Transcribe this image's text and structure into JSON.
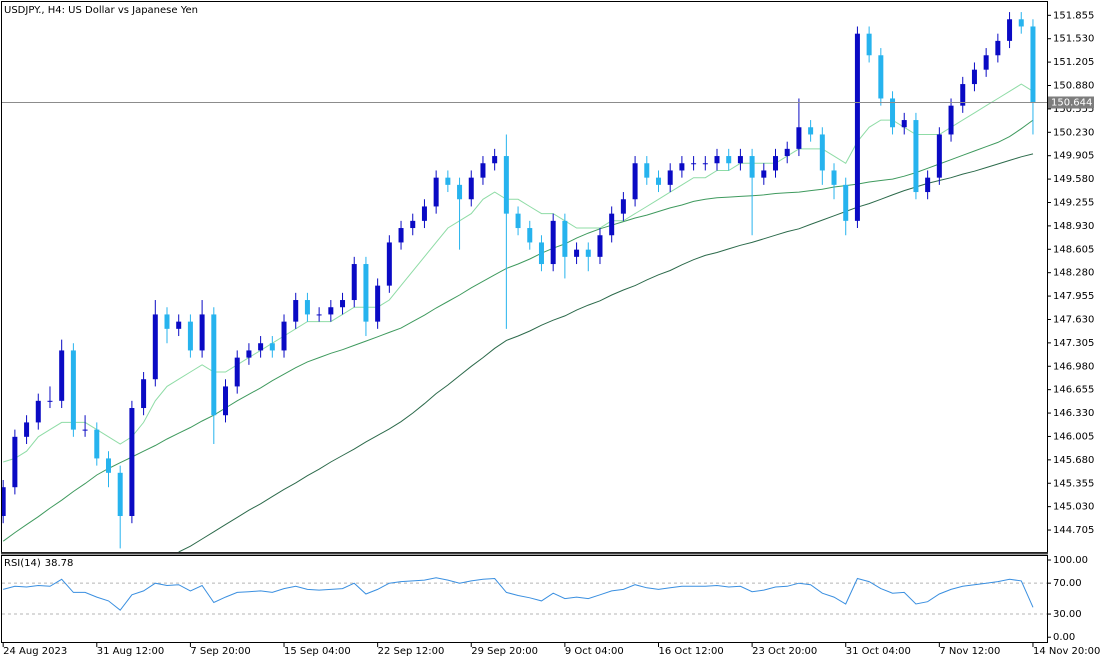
{
  "chart_data": [
    {
      "type": "candlestick",
      "title": "USDJPY., H4: US Dollar vs Japanese Yen",
      "xlim": [
        -0.1,
        89.2
      ],
      "ylim": [
        144.4,
        152.04
      ],
      "yticks": [
        151.855,
        {
          "value": 151.53,
          "label": "151.530"
        },
        151.205,
        {
          "value": 150.88,
          "label": "150.880"
        },
        150.555,
        {
          "value": 150.23,
          "label": "150.230"
        },
        149.905,
        {
          "value": 149.58,
          "label": "149.580"
        },
        149.255,
        {
          "value": 148.93,
          "label": "148.930"
        },
        148.605,
        {
          "value": 148.28,
          "label": "148.280"
        },
        147.955,
        {
          "value": 147.63,
          "label": "147.630"
        },
        147.305,
        {
          "value": 146.98,
          "label": "146.980"
        },
        146.655,
        {
          "value": 146.33,
          "label": "146.330"
        },
        146.005,
        {
          "value": 145.68,
          "label": "145.680"
        },
        145.355,
        {
          "value": 145.03,
          "label": "145.030"
        },
        144.705
      ],
      "xticks": [
        {
          "value": 0,
          "label": "24 Aug 2023"
        },
        {
          "value": 8,
          "label": "31 Aug 12:00"
        },
        {
          "value": 16,
          "label": "7 Sep 20:00"
        },
        {
          "value": 24,
          "label": "15 Sep 04:00"
        },
        {
          "value": 32,
          "label": "22 Sep 12:00"
        },
        {
          "value": 40,
          "label": "29 Sep 20:00"
        },
        {
          "value": 48,
          "label": "9 Oct 04:00"
        },
        {
          "value": 56,
          "label": "16 Oct 12:00"
        },
        {
          "value": 64,
          "label": "23 Oct 20:00"
        },
        {
          "value": 72,
          "label": "31 Oct 04:00"
        },
        {
          "value": 80,
          "label": "7 Nov 12:00"
        },
        {
          "value": 88,
          "label": "14 Nov 20:00"
        }
      ],
      "up_color": "#0a0ac4",
      "down_color": "#26b3ee",
      "candles": {
        "open": [
          144.9,
          145.3,
          146.0,
          146.2,
          146.5,
          146.5,
          147.2,
          146.1,
          146.1,
          145.7,
          145.5,
          144.9,
          146.4,
          146.8,
          147.7,
          147.5,
          147.6,
          147.2,
          147.7,
          146.3,
          146.7,
          147.1,
          147.2,
          147.3,
          147.2,
          147.6,
          147.9,
          147.7,
          147.7,
          147.8,
          147.9,
          148.4,
          147.6,
          148.1,
          148.7,
          148.9,
          149.0,
          149.2,
          149.6,
          149.5,
          149.3,
          149.6,
          149.8,
          149.9,
          149.1,
          148.9,
          148.7,
          148.4,
          149.0,
          148.5,
          148.6,
          148.5,
          148.8,
          149.1,
          149.3,
          149.8,
          149.6,
          149.5,
          149.7,
          149.8,
          149.8,
          149.8,
          149.9,
          149.8,
          149.9,
          149.6,
          149.7,
          149.9,
          150.0,
          150.3,
          150.2,
          149.7,
          149.5,
          149.0,
          151.6,
          151.3,
          150.7,
          150.3,
          150.4,
          149.4,
          149.6,
          150.2,
          150.6,
          150.9,
          151.1,
          151.3,
          151.5,
          151.8,
          151.7
        ],
        "high": [
          145.4,
          146.1,
          146.3,
          146.6,
          146.7,
          147.35,
          147.3,
          146.3,
          146.2,
          145.8,
          145.6,
          146.5,
          146.9,
          147.9,
          147.8,
          147.7,
          147.7,
          147.9,
          147.8,
          146.8,
          147.2,
          147.3,
          147.4,
          147.4,
          147.7,
          148.0,
          148.0,
          147.8,
          147.9,
          148.0,
          148.5,
          148.5,
          148.2,
          148.8,
          149.0,
          149.1,
          149.3,
          149.7,
          149.7,
          149.6,
          149.7,
          149.9,
          150.0,
          150.2,
          149.2,
          149.0,
          148.8,
          149.1,
          149.1,
          148.7,
          148.7,
          148.9,
          149.2,
          149.4,
          149.9,
          149.9,
          149.7,
          149.8,
          149.9,
          149.9,
          149.9,
          150.0,
          150.0,
          150.0,
          150.0,
          149.8,
          150.0,
          150.1,
          150.7,
          150.4,
          150.3,
          149.8,
          149.6,
          151.7,
          151.7,
          151.4,
          150.8,
          150.5,
          150.5,
          149.7,
          150.3,
          150.7,
          151.0,
          151.2,
          151.4,
          151.6,
          151.9,
          151.9,
          151.8
        ],
        "low": [
          144.8,
          145.2,
          145.9,
          146.1,
          146.4,
          146.4,
          146.0,
          146.0,
          145.6,
          145.3,
          144.45,
          144.8,
          146.3,
          146.7,
          147.3,
          147.4,
          147.1,
          147.1,
          145.9,
          146.2,
          146.6,
          147.0,
          147.1,
          147.1,
          147.1,
          147.5,
          147.6,
          147.6,
          147.6,
          147.7,
          147.8,
          147.4,
          147.5,
          148.0,
          148.6,
          148.8,
          148.9,
          149.1,
          149.4,
          148.6,
          149.2,
          149.5,
          149.7,
          147.5,
          148.8,
          148.6,
          148.3,
          148.3,
          148.2,
          148.4,
          148.3,
          148.4,
          148.7,
          149.0,
          149.2,
          149.5,
          149.4,
          149.4,
          149.6,
          149.7,
          149.7,
          149.7,
          149.7,
          149.7,
          148.8,
          149.5,
          149.6,
          149.8,
          149.9,
          150.1,
          149.5,
          149.3,
          148.8,
          148.9,
          151.2,
          150.6,
          150.2,
          150.2,
          149.3,
          149.3,
          149.5,
          150.1,
          150.5,
          150.8,
          151.0,
          151.2,
          151.4,
          151.6,
          150.2
        ],
        "close": [
          145.3,
          146.0,
          146.2,
          146.5,
          146.5,
          147.2,
          146.1,
          146.1,
          145.7,
          145.5,
          144.9,
          146.4,
          146.8,
          147.7,
          147.5,
          147.6,
          147.2,
          147.7,
          146.3,
          146.7,
          147.1,
          147.2,
          147.3,
          147.2,
          147.6,
          147.9,
          147.7,
          147.7,
          147.8,
          147.9,
          148.4,
          147.6,
          148.1,
          148.7,
          148.9,
          149.0,
          149.2,
          149.6,
          149.5,
          149.3,
          149.6,
          149.8,
          149.9,
          149.1,
          148.9,
          148.7,
          148.4,
          149.0,
          148.5,
          148.6,
          148.5,
          148.8,
          149.1,
          149.3,
          149.8,
          149.6,
          149.5,
          149.7,
          149.8,
          149.8,
          149.8,
          149.9,
          149.8,
          149.9,
          149.6,
          149.7,
          149.9,
          150.0,
          150.3,
          150.2,
          149.7,
          149.5,
          149.0,
          151.6,
          151.3,
          150.7,
          150.3,
          150.4,
          149.4,
          149.6,
          150.2,
          150.6,
          150.9,
          151.1,
          151.3,
          151.5,
          151.8,
          151.7,
          150.644
        ]
      },
      "series": [
        {
          "color": "#8fdca6",
          "values": [
            145.65,
            145.7,
            145.8,
            146.0,
            146.1,
            146.2,
            146.2,
            146.2,
            146.1,
            146.0,
            145.9,
            146.0,
            146.2,
            146.5,
            146.7,
            146.8,
            146.9,
            147.0,
            146.9,
            146.9,
            147.0,
            147.1,
            147.2,
            147.3,
            147.4,
            147.5,
            147.6,
            147.6,
            147.6,
            147.7,
            147.8,
            147.8,
            147.8,
            147.9,
            148.1,
            148.3,
            148.5,
            148.7,
            148.9,
            149.0,
            149.1,
            149.3,
            149.4,
            149.3,
            149.3,
            149.2,
            149.1,
            149.1,
            149.0,
            148.9,
            148.9,
            148.9,
            149.0,
            149.0,
            149.1,
            149.2,
            149.3,
            149.4,
            149.5,
            149.6,
            149.6,
            149.7,
            149.7,
            149.8,
            149.8,
            149.8,
            149.8,
            149.9,
            150.0,
            150.0,
            150.0,
            149.9,
            149.8,
            150.1,
            150.3,
            150.4,
            150.4,
            150.3,
            150.2,
            150.2,
            150.2,
            150.3,
            150.4,
            150.5,
            150.6,
            150.7,
            150.8,
            150.9,
            150.8
          ]
        },
        {
          "color": "#3f9a5e",
          "values": [
            144.55,
            144.67,
            144.78,
            144.89,
            145.01,
            145.12,
            145.24,
            145.35,
            145.47,
            145.56,
            145.64,
            145.72,
            145.8,
            145.88,
            145.97,
            146.05,
            146.13,
            146.22,
            146.3,
            146.4,
            146.5,
            146.59,
            146.68,
            146.78,
            146.87,
            146.96,
            147.04,
            147.1,
            147.16,
            147.21,
            147.27,
            147.33,
            147.39,
            147.45,
            147.51,
            147.6,
            147.69,
            147.79,
            147.88,
            147.97,
            148.07,
            148.16,
            148.25,
            148.34,
            148.4,
            148.47,
            148.55,
            148.62,
            148.68,
            148.76,
            148.83,
            148.89,
            148.94,
            148.99,
            149.04,
            149.08,
            149.13,
            149.18,
            149.22,
            149.27,
            149.3,
            149.32,
            149.33,
            149.34,
            149.35,
            149.36,
            149.38,
            149.39,
            149.4,
            149.42,
            149.44,
            149.47,
            149.49,
            149.51,
            149.54,
            149.56,
            149.58,
            149.62,
            149.67,
            149.73,
            149.79,
            149.85,
            149.91,
            149.97,
            150.03,
            150.09,
            150.17,
            150.28,
            150.4
          ]
        },
        {
          "color": "#2c6a4b",
          "values": [
            null,
            null,
            null,
            null,
            null,
            null,
            null,
            null,
            null,
            null,
            null,
            null,
            null,
            null,
            null,
            144.4,
            144.48,
            144.58,
            144.68,
            144.78,
            144.88,
            144.98,
            145.07,
            145.17,
            145.27,
            145.36,
            145.46,
            145.55,
            145.65,
            145.74,
            145.83,
            145.93,
            146.02,
            146.11,
            146.21,
            146.33,
            146.46,
            146.6,
            146.72,
            146.85,
            146.98,
            147.1,
            147.23,
            147.34,
            147.4,
            147.47,
            147.55,
            147.62,
            147.68,
            147.76,
            147.83,
            147.89,
            147.97,
            148.04,
            148.1,
            148.18,
            148.25,
            148.31,
            148.39,
            148.46,
            148.52,
            148.56,
            148.61,
            148.66,
            148.7,
            148.75,
            148.8,
            148.85,
            148.89,
            148.95,
            149.01,
            149.07,
            149.13,
            149.19,
            149.24,
            149.3,
            149.36,
            149.42,
            149.47,
            149.52,
            149.56,
            149.6,
            149.65,
            149.69,
            149.74,
            149.79,
            149.84,
            149.89,
            149.93
          ]
        }
      ]
    },
    {
      "type": "line",
      "title": "RSI(14)",
      "color": "#3a8fe0",
      "ylim": [
        -6.2,
        105.2
      ],
      "yticks": [
        {
          "value": 100,
          "label": "100.00"
        },
        {
          "value": 70,
          "label": "70.00"
        },
        {
          "value": 30,
          "label": "30.00"
        },
        {
          "value": 0,
          "label": "0.00"
        }
      ],
      "levels": [
        70,
        30
      ],
      "values": [
        62,
        66,
        65,
        67,
        66,
        75,
        58,
        58,
        52,
        47,
        35,
        55,
        60,
        70,
        67,
        68,
        60,
        67,
        45,
        52,
        58,
        59,
        60,
        58,
        63,
        66,
        62,
        61,
        62,
        63,
        70,
        56,
        62,
        70,
        72,
        73,
        74,
        77,
        74,
        70,
        73,
        75,
        76,
        58,
        54,
        51,
        47,
        57,
        50,
        52,
        50,
        55,
        60,
        62,
        68,
        64,
        62,
        64,
        66,
        66,
        66,
        67,
        65,
        66,
        59,
        61,
        65,
        66,
        70,
        68,
        57,
        52,
        43,
        76,
        72,
        63,
        57,
        58,
        43,
        46,
        56,
        62,
        66,
        68,
        70,
        72,
        75,
        73,
        38.78
      ]
    }
  ]
}
